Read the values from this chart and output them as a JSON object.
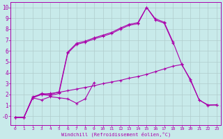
{
  "background_color": "#c8eaea",
  "grid_color": "#b0cccc",
  "line_color": "#aa00aa",
  "xlabel": "Windchill (Refroidissement éolien,°C)",
  "xlim": [
    -0.5,
    23.5
  ],
  "ylim": [
    -0.8,
    10.5
  ],
  "xticks": [
    0,
    1,
    2,
    3,
    4,
    5,
    6,
    7,
    8,
    9,
    10,
    11,
    12,
    13,
    14,
    15,
    16,
    17,
    18,
    19,
    20,
    21,
    22,
    23
  ],
  "yticks": [
    0,
    1,
    2,
    3,
    4,
    5,
    6,
    7,
    8,
    9,
    10
  ],
  "series": [
    {
      "x": [
        0,
        1,
        2,
        3,
        4,
        5,
        6,
        7,
        8,
        9
      ],
      "y": [
        -0.1,
        -0.1,
        1.7,
        1.5,
        1.8,
        1.7,
        1.6,
        1.2,
        1.6,
        3.1
      ],
      "marker": "+"
    },
    {
      "x": [
        0,
        1,
        2,
        3,
        4,
        5,
        6,
        7,
        8,
        9,
        10,
        11,
        12,
        13,
        14,
        15,
        16,
        17,
        18,
        19,
        20,
        21,
        22,
        23
      ],
      "y": [
        -0.1,
        -0.1,
        1.8,
        2.0,
        2.1,
        2.2,
        2.35,
        2.5,
        2.65,
        2.8,
        3.0,
        3.15,
        3.3,
        3.5,
        3.65,
        3.85,
        4.1,
        4.35,
        4.6,
        4.75,
        3.4,
        1.5,
        1.0,
        1.05
      ],
      "marker": "+"
    },
    {
      "x": [
        0,
        1,
        2,
        3,
        4,
        5,
        6,
        7,
        8,
        9,
        10,
        11,
        12,
        13,
        14,
        15,
        16,
        17,
        18
      ],
      "y": [
        -0.1,
        -0.1,
        1.7,
        2.0,
        1.9,
        2.1,
        5.8,
        6.6,
        6.8,
        7.1,
        7.35,
        7.6,
        8.0,
        8.35,
        8.5,
        10.0,
        8.85,
        8.55,
        6.75
      ],
      "marker": "+"
    },
    {
      "x": [
        0,
        1,
        2,
        3,
        4,
        5,
        6,
        7,
        8,
        9,
        10,
        11,
        12,
        13,
        14,
        15,
        16,
        17,
        18,
        19,
        20,
        21,
        22,
        23
      ],
      "y": [
        -0.1,
        -0.1,
        1.7,
        2.1,
        2.0,
        2.25,
        5.9,
        6.7,
        6.9,
        7.2,
        7.45,
        7.7,
        8.1,
        8.45,
        8.6,
        10.0,
        8.95,
        8.65,
        6.85,
        4.8,
        3.3,
        1.5,
        1.05,
        1.05
      ],
      "marker": "+"
    }
  ]
}
